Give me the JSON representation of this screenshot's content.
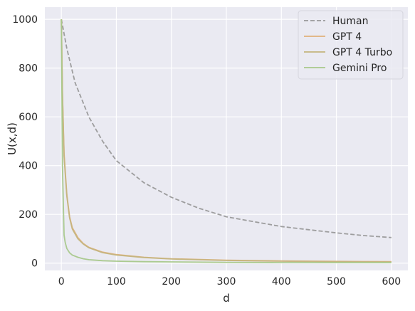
{
  "chart_data": {
    "type": "line",
    "xlabel": "d",
    "ylabel": "U(x,d)",
    "xlim": [
      -30,
      630
    ],
    "ylim": [
      -30,
      1050
    ],
    "xticks": [
      0,
      100,
      200,
      300,
      400,
      500,
      600
    ],
    "yticks": [
      0,
      200,
      400,
      600,
      800,
      1000
    ],
    "grid": true,
    "legend_position": "top-right",
    "series": [
      {
        "name": "Human",
        "style": "dashed",
        "color": "#999999",
        "x": [
          0,
          10,
          25,
          50,
          75,
          100,
          150,
          200,
          250,
          300,
          350,
          400,
          450,
          500,
          550,
          600
        ],
        "y": [
          1000,
          880,
          740,
          600,
          500,
          420,
          330,
          270,
          225,
          190,
          170,
          150,
          137,
          124,
          113,
          105
        ]
      },
      {
        "name": "GPT 4",
        "style": "solid",
        "color": "#e0b07a",
        "x": [
          0,
          2,
          5,
          7,
          10,
          15,
          20,
          30,
          40,
          50,
          75,
          100,
          150,
          200,
          300,
          400,
          500,
          600
        ],
        "y": [
          1000,
          700,
          450,
          380,
          280,
          190,
          145,
          105,
          80,
          65,
          45,
          35,
          24,
          18,
          12,
          9,
          7,
          6
        ]
      },
      {
        "name": "GPT 4 Turbo",
        "style": "solid",
        "color": "#c4b57e",
        "x": [
          0,
          2,
          5,
          7,
          10,
          15,
          20,
          30,
          40,
          50,
          75,
          100,
          150,
          200,
          300,
          400,
          500,
          600
        ],
        "y": [
          1000,
          690,
          440,
          370,
          275,
          185,
          140,
          100,
          78,
          63,
          43,
          33,
          23,
          17,
          11,
          8,
          6,
          5
        ]
      },
      {
        "name": "Gemini Pro",
        "style": "solid",
        "color": "#a8c88a",
        "x": [
          0,
          2,
          5,
          7,
          10,
          15,
          20,
          30,
          40,
          50,
          75,
          100,
          150,
          200,
          300,
          400,
          500,
          600
        ],
        "y": [
          1000,
          400,
          115,
          85,
          60,
          42,
          33,
          24,
          18,
          14,
          10,
          8,
          6,
          5,
          3,
          2,
          2,
          2
        ]
      }
    ]
  }
}
